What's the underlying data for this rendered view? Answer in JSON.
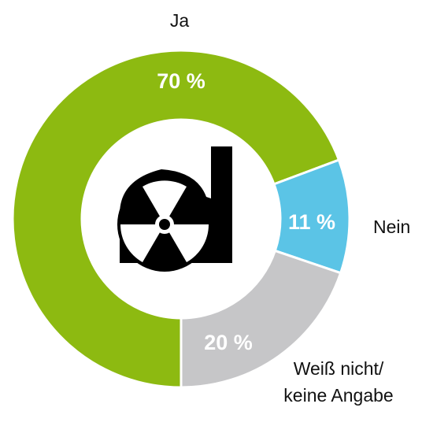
{
  "chart_data": {
    "type": "donut",
    "categories": [
      "Ja",
      "Nein",
      "Weiß nicht/keine Angabe"
    ],
    "values": [
      70,
      11,
      20
    ],
    "value_labels": [
      "70 %",
      "11 %",
      "20 %"
    ],
    "colors": [
      "#8dba11",
      "#5bc4e6",
      "#c6c6c8"
    ]
  }
}
